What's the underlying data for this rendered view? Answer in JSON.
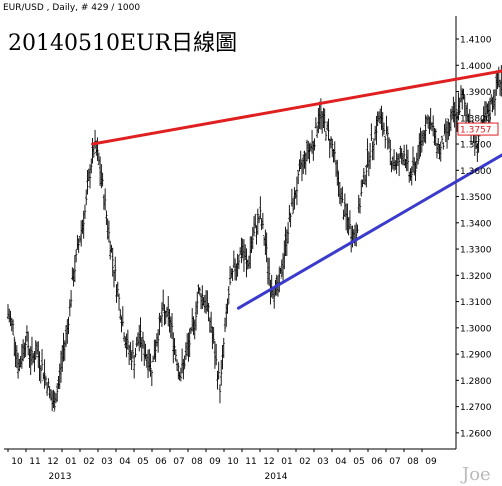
{
  "header": {
    "symbol_info": "EUR/USD , Daily, # 429 / 1000",
    "title": "20140510EUR日線圖",
    "watermark": "Joe"
  },
  "chart_data": {
    "type": "ohlc",
    "ylim": [
      1.255,
      1.418
    ],
    "grid": false,
    "current_price_label": "1.3757",
    "current_price": 1.3757,
    "y_tick_labels": [
      "1.4100",
      "1.4000",
      "1.3900",
      "1.3800",
      "1.3700",
      "1.3600",
      "1.3500",
      "1.3400",
      "1.3300",
      "1.3200",
      "1.3100",
      "1.3000",
      "1.2900",
      "1.2800",
      "1.2700",
      "1.2600"
    ],
    "y_ticks": [
      1.41,
      1.4,
      1.39,
      1.38,
      1.37,
      1.36,
      1.35,
      1.34,
      1.33,
      1.32,
      1.31,
      1.3,
      1.29,
      1.28,
      1.27,
      1.26
    ],
    "x_month_labels": [
      "10",
      "11",
      "12",
      "01",
      "02",
      "03",
      "04",
      "05",
      "06",
      "07",
      "08",
      "09",
      "10",
      "11",
      "12",
      "01",
      "02",
      "03",
      "04",
      "05",
      "06",
      "07",
      "08",
      "09"
    ],
    "x_year_labels": [
      {
        "label": "2013",
        "under_month_index": 3
      },
      {
        "label": "2014",
        "under_month_index": 15
      }
    ],
    "months_span": 24,
    "path_points": [
      [
        0.0,
        1.305
      ],
      [
        0.3,
        1.3
      ],
      [
        0.6,
        1.284
      ],
      [
        1.0,
        1.297
      ],
      [
        1.3,
        1.288
      ],
      [
        1.6,
        1.291
      ],
      [
        2.0,
        1.283
      ],
      [
        2.3,
        1.276
      ],
      [
        2.5,
        1.27
      ],
      [
        2.8,
        1.278
      ],
      [
        3.0,
        1.288
      ],
      [
        3.3,
        1.3
      ],
      [
        3.6,
        1.318
      ],
      [
        4.0,
        1.335
      ],
      [
        4.3,
        1.345
      ],
      [
        4.6,
        1.362
      ],
      [
        4.8,
        1.369
      ],
      [
        5.0,
        1.365
      ],
      [
        5.3,
        1.352
      ],
      [
        5.6,
        1.336
      ],
      [
        6.0,
        1.318
      ],
      [
        6.3,
        1.305
      ],
      [
        6.6,
        1.293
      ],
      [
        7.0,
        1.288
      ],
      [
        7.3,
        1.297
      ],
      [
        7.6,
        1.291
      ],
      [
        8.0,
        1.285
      ],
      [
        8.3,
        1.297
      ],
      [
        8.6,
        1.306
      ],
      [
        9.0,
        1.303
      ],
      [
        9.3,
        1.291
      ],
      [
        9.6,
        1.282
      ],
      [
        10.0,
        1.292
      ],
      [
        10.3,
        1.3
      ],
      [
        10.6,
        1.314
      ],
      [
        11.0,
        1.31
      ],
      [
        11.3,
        1.3
      ],
      [
        11.6,
        1.285
      ],
      [
        11.8,
        1.277
      ],
      [
        12.0,
        1.295
      ],
      [
        12.3,
        1.315
      ],
      [
        12.6,
        1.323
      ],
      [
        13.0,
        1.33
      ],
      [
        13.3,
        1.323
      ],
      [
        13.6,
        1.334
      ],
      [
        14.0,
        1.343
      ],
      [
        14.3,
        1.332
      ],
      [
        14.6,
        1.316
      ],
      [
        15.0,
        1.314
      ],
      [
        15.3,
        1.326
      ],
      [
        15.6,
        1.34
      ],
      [
        16.0,
        1.352
      ],
      [
        16.3,
        1.361
      ],
      [
        16.6,
        1.367
      ],
      [
        17.0,
        1.371
      ],
      [
        17.3,
        1.382
      ],
      [
        17.6,
        1.377
      ],
      [
        18.0,
        1.37
      ],
      [
        18.3,
        1.358
      ],
      [
        18.6,
        1.346
      ],
      [
        19.0,
        1.338
      ],
      [
        19.3,
        1.334
      ],
      [
        19.6,
        1.35
      ],
      [
        20.0,
        1.365
      ],
      [
        20.3,
        1.372
      ],
      [
        20.6,
        1.38
      ],
      [
        21.0,
        1.374
      ],
      [
        21.3,
        1.365
      ],
      [
        21.6,
        1.362
      ],
      [
        22.0,
        1.367
      ],
      [
        22.3,
        1.358
      ],
      [
        22.6,
        1.361
      ],
      [
        23.0,
        1.372
      ],
      [
        23.3,
        1.38
      ],
      [
        23.6,
        1.375
      ],
      [
        24.0,
        1.367
      ],
      [
        24.3,
        1.373
      ],
      [
        24.6,
        1.378
      ],
      [
        25.0,
        1.383
      ],
      [
        25.3,
        1.387
      ],
      [
        25.6,
        1.38
      ],
      [
        26.0,
        1.37
      ],
      [
        26.3,
        1.375
      ],
      [
        26.6,
        1.38
      ],
      [
        27.0,
        1.388
      ],
      [
        27.3,
        1.395
      ],
      [
        27.6,
        1.389
      ],
      [
        28.0,
        1.383
      ],
      [
        28.3,
        1.39
      ],
      [
        28.6,
        1.382
      ],
      [
        29.0,
        1.385
      ],
      [
        29.3,
        1.392
      ],
      [
        29.6,
        1.387
      ],
      [
        30.0,
        1.375
      ]
    ],
    "annotations": [
      {
        "name": "resistance-trendline",
        "color": "#e02020",
        "from": [
          4.7,
          1.37
        ],
        "to": [
          32.5,
          1.404
        ]
      },
      {
        "name": "support-trendline",
        "color": "#3a3acc",
        "from": [
          12.8,
          1.3075
        ],
        "to": [
          30.0,
          1.376
        ]
      }
    ]
  }
}
